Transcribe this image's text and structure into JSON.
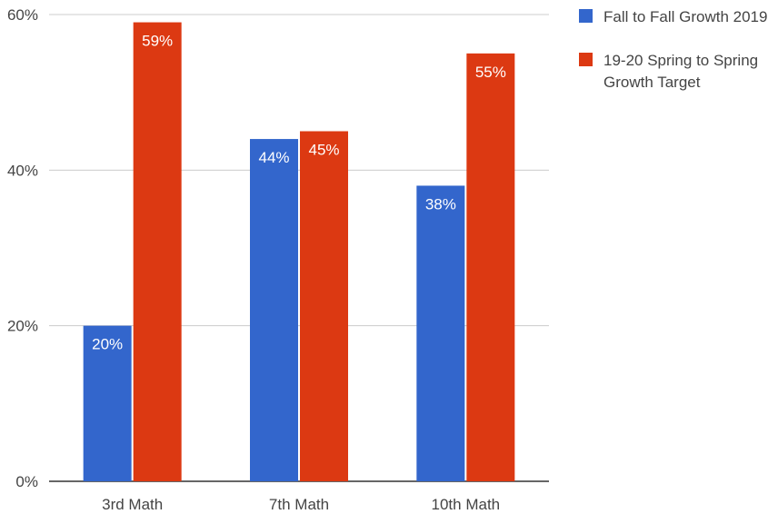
{
  "chart_data": {
    "type": "bar",
    "title": "",
    "xlabel": "",
    "ylabel": "",
    "categories": [
      "3rd Math",
      "7th Math",
      "10th Math"
    ],
    "series": [
      {
        "name": "Fall to Fall Growth 2019",
        "color": "#3366cc",
        "values": [
          20,
          44,
          38
        ],
        "labels": [
          "20%",
          "44%",
          "38%"
        ]
      },
      {
        "name": "19-20 Spring to Spring Growth Target",
        "name_lines": [
          "19-20 Spring to Spring",
          "Growth Target"
        ],
        "color": "#dc3912",
        "values": [
          59,
          45,
          55
        ],
        "labels": [
          "59%",
          "45%",
          "55%"
        ]
      }
    ],
    "ylim": [
      0,
      60
    ],
    "yticks": [
      0,
      20,
      40,
      60
    ],
    "ytick_labels": [
      "0%",
      "20%",
      "40%",
      "60%"
    ],
    "grid": true,
    "legend": "top-right"
  }
}
